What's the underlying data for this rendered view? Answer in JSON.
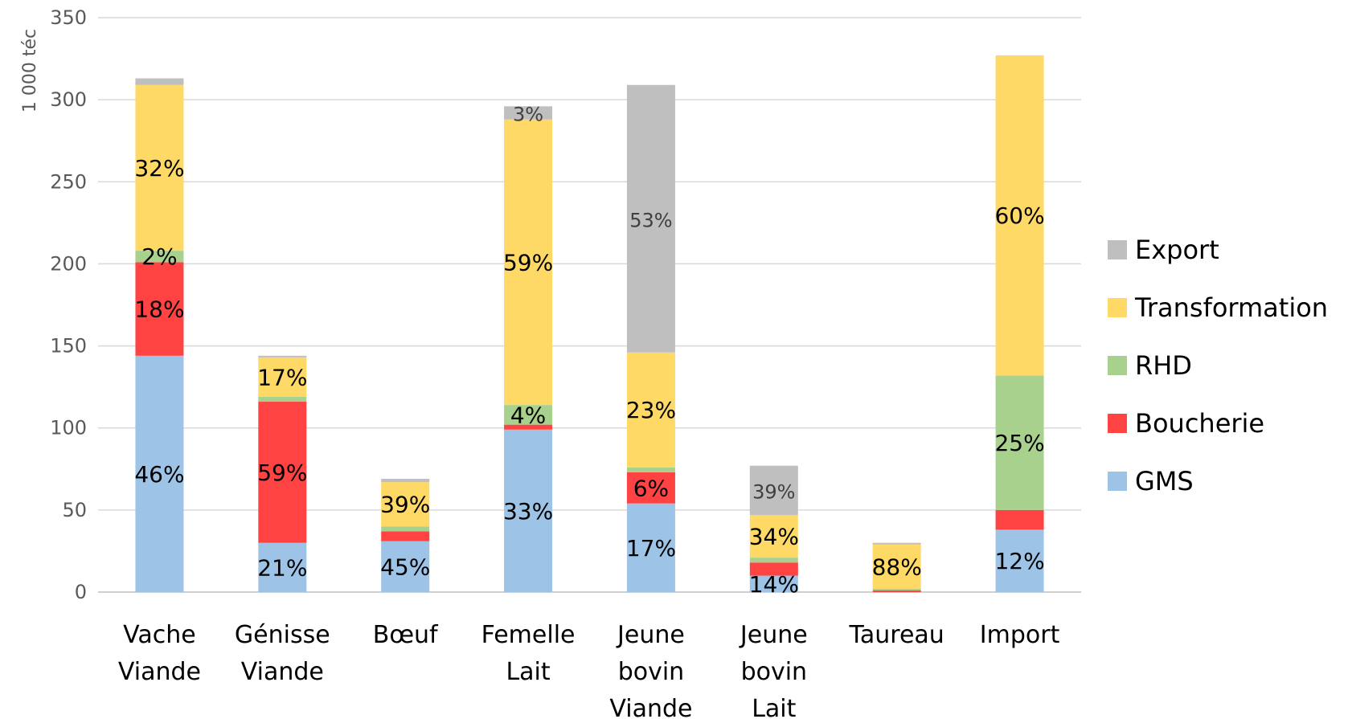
{
  "chart_data": {
    "type": "bar",
    "stacked": true,
    "ylabel": "1 000 téc",
    "ylim": [
      0,
      350
    ],
    "yticks": [
      0,
      50,
      100,
      150,
      200,
      250,
      300,
      350
    ],
    "grid": true,
    "legend_position": "right",
    "categories": [
      [
        "Vache",
        "Viande"
      ],
      [
        "Génisse",
        "Viande"
      ],
      [
        "Bœuf"
      ],
      [
        "Femelle",
        "Lait"
      ],
      [
        "Jeune",
        "bovin",
        "Viande"
      ],
      [
        "Jeune",
        "bovin",
        "Lait"
      ],
      [
        "Taureau"
      ],
      [
        "Import"
      ]
    ],
    "series": [
      {
        "name": "GMS",
        "color": "#9DC3E6",
        "values": [
          144,
          30,
          31,
          99,
          54,
          10,
          0,
          38
        ],
        "labels": [
          "46%",
          "21%",
          "45%",
          "33%",
          "17%",
          "14%",
          "",
          "12%"
        ]
      },
      {
        "name": "Boucherie",
        "color": "#FF4343",
        "values": [
          57,
          86,
          6,
          3,
          19,
          8,
          1,
          12
        ],
        "labels": [
          "18%",
          "59%",
          "",
          "",
          "6%",
          "",
          "",
          ""
        ]
      },
      {
        "name": "RHD",
        "color": "#A9D18E",
        "values": [
          7,
          3,
          3,
          12,
          3,
          3,
          1,
          82
        ],
        "labels": [
          "2%",
          "",
          "",
          "4%",
          "",
          "",
          "",
          "25%"
        ]
      },
      {
        "name": "Transformation",
        "color": "#FFD966",
        "values": [
          101,
          24,
          27,
          174,
          70,
          26,
          27,
          195
        ],
        "labels": [
          "32%",
          "17%",
          "39%",
          "59%",
          "23%",
          "34%",
          "88%",
          "60%"
        ]
      },
      {
        "name": "Export",
        "color": "#BFBFBF",
        "values": [
          4,
          1,
          2,
          8,
          163,
          30,
          1,
          0
        ],
        "labels": [
          "",
          "",
          "",
          "3%",
          "53%",
          "39%",
          "",
          ""
        ]
      }
    ],
    "legend_order": [
      "Export",
      "Transformation",
      "RHD",
      "Boucherie",
      "GMS"
    ]
  }
}
